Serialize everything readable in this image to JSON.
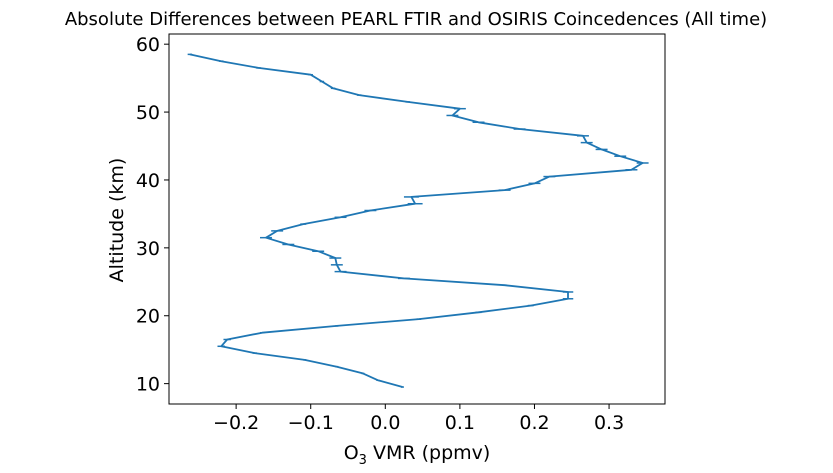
{
  "chart_data": {
    "type": "line",
    "title": "Absolute Differences between PEARL FTIR and OSIRIS Coincedences (All time)",
    "xlabel_main": "O",
    "xlabel_sub": "3",
    "xlabel_rest": " VMR (ppmv)",
    "ylabel": "Altitude (km)",
    "xlim": [
      -0.29,
      0.375
    ],
    "ylim": [
      7,
      61.5
    ],
    "xticks": [
      -0.2,
      -0.1,
      0.0,
      0.1,
      0.2,
      0.3
    ],
    "xtick_labels": [
      "−0.2",
      "−0.1",
      "0.0",
      "0.1",
      "0.2",
      "0.3"
    ],
    "yticks": [
      10,
      20,
      30,
      40,
      50,
      60
    ],
    "ytick_labels": [
      "10",
      "20",
      "30",
      "40",
      "50",
      "60"
    ],
    "grid": false,
    "series": [
      {
        "color": "#1f77b4",
        "points": [
          {
            "x": 0.023,
            "y": 9.5,
            "err": 0.002
          },
          {
            "x": -0.01,
            "y": 10.5,
            "err": 0.002
          },
          {
            "x": -0.03,
            "y": 11.5,
            "err": 0.002
          },
          {
            "x": -0.065,
            "y": 12.5,
            "err": 0.002
          },
          {
            "x": -0.108,
            "y": 13.5,
            "err": 0.002
          },
          {
            "x": -0.175,
            "y": 14.5,
            "err": 0.003
          },
          {
            "x": -0.22,
            "y": 15.5,
            "err": 0.005
          },
          {
            "x": -0.212,
            "y": 16.5,
            "err": 0.005
          },
          {
            "x": -0.165,
            "y": 17.5,
            "err": 0.003
          },
          {
            "x": -0.065,
            "y": 18.5,
            "err": 0.002
          },
          {
            "x": 0.045,
            "y": 19.5,
            "err": 0.003
          },
          {
            "x": 0.125,
            "y": 20.5,
            "err": 0.004
          },
          {
            "x": 0.195,
            "y": 21.5,
            "err": 0.004
          },
          {
            "x": 0.245,
            "y": 22.5,
            "err": 0.007
          },
          {
            "x": 0.245,
            "y": 23.5,
            "err": 0.007
          },
          {
            "x": 0.16,
            "y": 24.5,
            "err": 0.003
          },
          {
            "x": 0.025,
            "y": 25.5,
            "err": 0.008
          },
          {
            "x": -0.06,
            "y": 26.5,
            "err": 0.008
          },
          {
            "x": -0.065,
            "y": 27.5,
            "err": 0.008
          },
          {
            "x": -0.067,
            "y": 28.5,
            "err": 0.008
          },
          {
            "x": -0.09,
            "y": 29.5,
            "err": 0.008
          },
          {
            "x": -0.13,
            "y": 30.5,
            "err": 0.008
          },
          {
            "x": -0.16,
            "y": 31.5,
            "err": 0.008
          },
          {
            "x": -0.145,
            "y": 32.5,
            "err": 0.008
          },
          {
            "x": -0.11,
            "y": 33.5,
            "err": 0.004
          },
          {
            "x": -0.06,
            "y": 34.5,
            "err": 0.008
          },
          {
            "x": -0.02,
            "y": 35.5,
            "err": 0.008
          },
          {
            "x": 0.04,
            "y": 36.5,
            "err": 0.01
          },
          {
            "x": 0.035,
            "y": 37.5,
            "err": 0.01
          },
          {
            "x": 0.16,
            "y": 38.5,
            "err": 0.008
          },
          {
            "x": 0.2,
            "y": 39.5,
            "err": 0.008
          },
          {
            "x": 0.22,
            "y": 40.5,
            "err": 0.008
          },
          {
            "x": 0.33,
            "y": 41.5,
            "err": 0.008
          },
          {
            "x": 0.345,
            "y": 42.5,
            "err": 0.008
          },
          {
            "x": 0.315,
            "y": 43.5,
            "err": 0.008
          },
          {
            "x": 0.29,
            "y": 44.5,
            "err": 0.008
          },
          {
            "x": 0.27,
            "y": 45.5,
            "err": 0.008
          },
          {
            "x": 0.265,
            "y": 46.5,
            "err": 0.008
          },
          {
            "x": 0.18,
            "y": 47.5,
            "err": 0.008
          },
          {
            "x": 0.125,
            "y": 48.5,
            "err": 0.008
          },
          {
            "x": 0.09,
            "y": 49.5,
            "err": 0.008
          },
          {
            "x": 0.1,
            "y": 50.5,
            "err": 0.008
          },
          {
            "x": 0.03,
            "y": 51.5,
            "err": 0.003
          },
          {
            "x": -0.035,
            "y": 52.5,
            "err": 0.003
          },
          {
            "x": -0.07,
            "y": 53.5,
            "err": 0.003
          },
          {
            "x": -0.085,
            "y": 54.5,
            "err": 0.003
          },
          {
            "x": -0.1,
            "y": 55.5,
            "err": 0.003
          },
          {
            "x": -0.17,
            "y": 56.5,
            "err": 0.003
          },
          {
            "x": -0.22,
            "y": 57.5,
            "err": 0.003
          },
          {
            "x": -0.262,
            "y": 58.5,
            "err": 0.003
          }
        ]
      }
    ]
  }
}
